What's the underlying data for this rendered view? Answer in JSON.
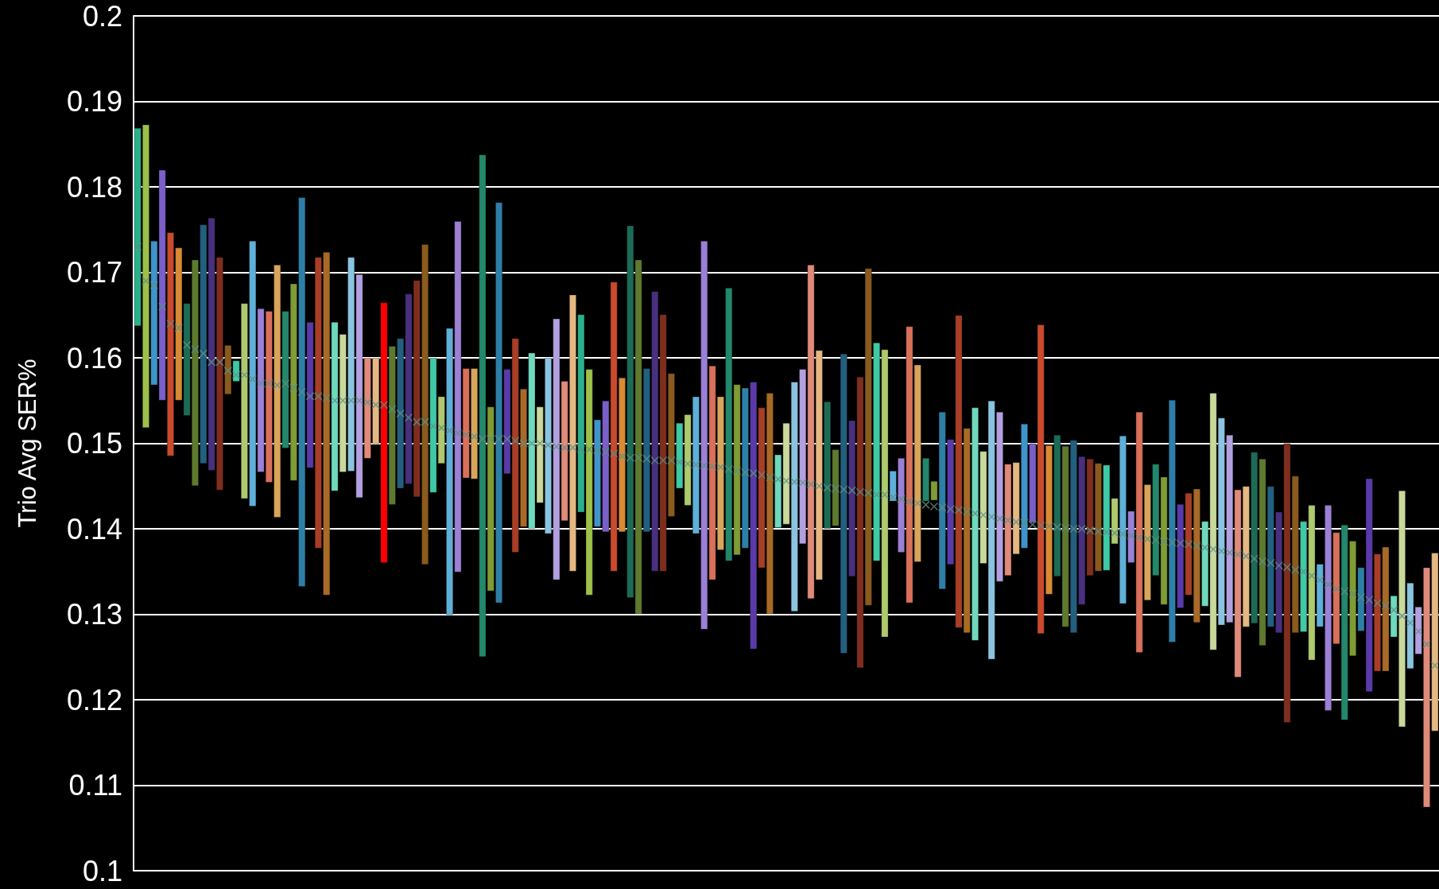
{
  "chart_data": {
    "type": "bar",
    "ylabel": "Trio Avg SER%",
    "categories": [
      null,
      null,
      null,
      null,
      null,
      null,
      null,
      null,
      null,
      null,
      null,
      null,
      null,
      null,
      null,
      null,
      null,
      null,
      null,
      null,
      null,
      null,
      null,
      null,
      null,
      null,
      null,
      null,
      null,
      null,
      null,
      null,
      null,
      null,
      null,
      null,
      null,
      null,
      null,
      null,
      null,
      null,
      null,
      null,
      null,
      null,
      null,
      null,
      null,
      null,
      null,
      null,
      null,
      null,
      null,
      null,
      null,
      null,
      null,
      null,
      null,
      null,
      null,
      null,
      null,
      null,
      null,
      null,
      null,
      null,
      null,
      null,
      null,
      null,
      null,
      null,
      null,
      null,
      null,
      null,
      null,
      null,
      null,
      null,
      null,
      null,
      null,
      null,
      null,
      null,
      null,
      null,
      null,
      null,
      null,
      null,
      null,
      null,
      null,
      null,
      null,
      null,
      null,
      null,
      null,
      null,
      null,
      null,
      null,
      null,
      null,
      null,
      null,
      null,
      null,
      null,
      null,
      null,
      null,
      null,
      null,
      null,
      null,
      null,
      null,
      null,
      null,
      null,
      null,
      null,
      null,
      null,
      null,
      null,
      null,
      null,
      null,
      null,
      null,
      null,
      null,
      null,
      null,
      null,
      null,
      null,
      null,
      null,
      null,
      null,
      null,
      null,
      null,
      null,
      null,
      null,
      null,
      null,
      null
    ],
    "ylim": [
      0.1,
      0.2
    ],
    "yticks": [
      0.1,
      0.11,
      0.12,
      0.13,
      0.14,
      0.15,
      0.16,
      0.17,
      0.18,
      0.19,
      0.2
    ],
    "grid": "y",
    "marker": "cross",
    "series": [
      {
        "type": "bar",
        "base": [
          0.1637,
          0.1518,
          0.1568,
          0.155,
          0.1485,
          0.155,
          0.1532,
          0.145,
          0.1476,
          0.1468,
          0.1445,
          0.1557,
          0.1572,
          0.1435,
          0.1426,
          0.1466,
          0.1454,
          0.1413,
          0.1494,
          0.1456,
          0.1332,
          0.1471,
          0.1377,
          0.1322,
          0.1444,
          0.1466,
          0.1467,
          0.1436,
          0.1482,
          0.1499,
          0.136,
          0.1428,
          0.1447,
          0.1452,
          0.1437,
          0.1358,
          0.1442,
          0.1476,
          0.1299,
          0.1349,
          0.1459,
          0.1458,
          0.125,
          0.1327,
          0.1313,
          0.1464,
          0.1372,
          0.1402,
          0.14,
          0.143,
          0.1394,
          0.134,
          0.1409,
          0.135,
          0.1419,
          0.1322,
          0.1402,
          0.1396,
          0.135,
          0.1396,
          0.1319,
          0.13,
          0.1396,
          0.135,
          0.135,
          0.1414,
          0.1447,
          0.1427,
          0.1394,
          0.1282,
          0.134,
          0.1375,
          0.1362,
          0.1369,
          0.1377,
          0.1259,
          0.1354,
          0.13,
          0.1401,
          0.1405,
          0.1303,
          0.1382,
          0.1318,
          0.134,
          0.14,
          0.1403,
          0.1254,
          0.1344,
          0.1237,
          0.131,
          0.1362,
          0.1273,
          0.1432,
          0.1372,
          0.1313,
          0.1361,
          0.1432,
          0.1433,
          0.1329,
          0.1358,
          0.1284,
          0.1278,
          0.1269,
          0.1359,
          0.1247,
          0.1338,
          0.1345,
          0.137,
          0.1377,
          0.1407,
          0.1277,
          0.1323,
          0.1344,
          0.1285,
          0.1278,
          0.1311,
          0.1345,
          0.135,
          0.1351,
          0.1382,
          0.1312,
          0.136,
          0.1255,
          0.1316,
          0.1345,
          0.1311,
          0.1267,
          0.1307,
          0.1322,
          0.129,
          0.1309,
          0.1258,
          0.1287,
          0.129,
          0.1226,
          0.1285,
          0.1289,
          0.1263,
          0.1285,
          0.1278,
          0.1173,
          0.1278,
          0.1279,
          0.1246,
          0.1285,
          0.1187,
          0.1265,
          0.1176,
          0.1251,
          0.128,
          0.1209,
          0.1233,
          0.1233,
          0.1273,
          0.1168,
          0.1236,
          0.1253,
          0.1074,
          0.1163
        ],
        "values": [
          0.0232,
          0.0355,
          0.0169,
          0.027,
          0.0262,
          0.0179,
          0.0132,
          0.0265,
          0.028,
          0.0296,
          0.0273,
          0.0058,
          0.0025,
          0.0229,
          0.0311,
          0.0192,
          0.0201,
          0.0296,
          0.0161,
          0.0231,
          0.0456,
          0.0171,
          0.0341,
          0.0402,
          0.0198,
          0.0162,
          0.0251,
          0.0262,
          0.0118,
          0.0101,
          0.0305,
          0.0186,
          0.0176,
          0.0223,
          0.0254,
          0.0375,
          0.0158,
          0.0079,
          0.0336,
          0.0411,
          0.0129,
          0.013,
          0.0588,
          0.0216,
          0.0469,
          0.0123,
          0.0251,
          0.0162,
          0.0206,
          0.0113,
          0.0206,
          0.0306,
          0.0164,
          0.0324,
          0.0232,
          0.0265,
          0.0126,
          0.0154,
          0.0339,
          0.0181,
          0.0436,
          0.0415,
          0.0192,
          0.0328,
          0.0301,
          0.0168,
          0.0077,
          0.0107,
          0.0161,
          0.0455,
          0.0251,
          0.018,
          0.032,
          0.02,
          0.0188,
          0.0313,
          0.0188,
          0.0259,
          0.0086,
          0.0119,
          0.0269,
          0.0205,
          0.0391,
          0.0269,
          0.0149,
          0.009,
          0.0351,
          0.0183,
          0.0341,
          0.0395,
          0.0256,
          0.0337,
          0.0036,
          0.0111,
          0.0324,
          0.0231,
          0.0051,
          0.0023,
          0.0208,
          0.0147,
          0.0366,
          0.024,
          0.0273,
          0.0132,
          0.0303,
          0.0199,
          0.0131,
          0.0108,
          0.0146,
          0.0093,
          0.0362,
          0.0175,
          0.0166,
          0.0212,
          0.0226,
          0.0174,
          0.0137,
          0.0127,
          0.0124,
          0.0054,
          0.0197,
          0.0061,
          0.0282,
          0.0136,
          0.0131,
          0.015,
          0.0284,
          0.0122,
          0.012,
          0.0157,
          0.01,
          0.0301,
          0.0243,
          0.022,
          0.022,
          0.0165,
          0.0201,
          0.0219,
          0.0165,
          0.0142,
          0.0327,
          0.0184,
          0.013,
          0.0182,
          0.0074,
          0.0241,
          0.0131,
          0.0229,
          0.0135,
          0.0075,
          0.025,
          0.0138,
          0.0146,
          0.0049,
          0.0277,
          0.0101,
          0.0056,
          0.0281,
          0.0209
        ],
        "colors": [
          "#2ab08a",
          "#9dc04a",
          "#3f94c9",
          "#7b5fc9",
          "#c94a2c",
          "#d98a35",
          "#1d6b57",
          "#5e7a2e",
          "#235f7f",
          "#48307f",
          "#7f2e1e",
          "#8a5a1e",
          "#3fc9a6",
          "#afc96e",
          "#5fb0d9",
          "#9b80d6",
          "#d9705a",
          "#d9a55a",
          "#23876b",
          "#7f9c35",
          "#2e7fa8",
          "#5a3aa8",
          "#a83e26",
          "#a86a26",
          "#6fd9bd",
          "#c9d99b",
          "#8ac4e0",
          "#b3a0e0",
          "#e08a7a",
          "#e5b882",
          "#ff0000",
          "#5e7a2e",
          "#235f7f",
          "#48307f",
          "#7f2e1e",
          "#8a5a1e",
          "#3fc9a6",
          "#afc96e",
          "#5fb0d9",
          "#9b80d6",
          "#d9705a",
          "#d9a55a",
          "#23876b",
          "#7f9c35",
          "#2e7fa8",
          "#5a3aa8",
          "#a83e26",
          "#a86a26",
          "#6fd9bd",
          "#c9d99b",
          "#8ac4e0",
          "#b3a0e0",
          "#e08a7a",
          "#e5b882",
          "#2ab08a",
          "#9dc04a",
          "#3f94c9",
          "#7b5fc9",
          "#c94a2c",
          "#d98a35",
          "#1d6b57",
          "#5e7a2e",
          "#235f7f",
          "#48307f",
          "#7f2e1e",
          "#8a5a1e",
          "#3fc9a6",
          "#afc96e",
          "#5fb0d9",
          "#9b80d6",
          "#d9705a",
          "#d9a55a",
          "#23876b",
          "#7f9c35",
          "#2e7fa8",
          "#5a3aa8",
          "#a83e26",
          "#a86a26",
          "#6fd9bd",
          "#c9d99b",
          "#8ac4e0",
          "#b3a0e0",
          "#e08a7a",
          "#e5b882",
          "#1d6b57",
          "#5e7a2e",
          "#235f7f",
          "#48307f",
          "#7f2e1e",
          "#8a5a1e",
          "#3fc9a6",
          "#afc96e",
          "#5fb0d9",
          "#9b80d6",
          "#d9705a",
          "#d9a55a",
          "#23876b",
          "#7f9c35",
          "#2e7fa8",
          "#5a3aa8",
          "#a83e26",
          "#a86a26",
          "#6fd9bd",
          "#c9d99b",
          "#8ac4e0",
          "#b3a0e0",
          "#e08a7a",
          "#e5b882",
          "#3f94c9",
          "#7b5fc9",
          "#c94a2c",
          "#d98a35",
          "#1d6b57",
          "#5e7a2e",
          "#235f7f",
          "#48307f",
          "#7f2e1e",
          "#8a5a1e",
          "#3fc9a6",
          "#afc96e",
          "#5fb0d9",
          "#9b80d6",
          "#d9705a",
          "#d9a55a",
          "#23876b",
          "#7f9c35",
          "#2e7fa8",
          "#5a3aa8",
          "#a83e26",
          "#a86a26",
          "#6fd9bd",
          "#c9d99b",
          "#8ac4e0",
          "#b3a0e0",
          "#e08a7a",
          "#e5b882",
          "#1d6b57",
          "#5e7a2e",
          "#235f7f",
          "#48307f",
          "#7f2e1e",
          "#8a5a1e",
          "#3fc9a6",
          "#afc96e",
          "#5fb0d9",
          "#9b80d6",
          "#d9705a",
          "#23876b",
          "#7f9c35",
          "#2e7fa8",
          "#5a3aa8",
          "#a83e26",
          "#a86a26",
          "#6fd9bd",
          "#c9d99b",
          "#8ac4e0",
          "#b3a0e0",
          "#e08a7a",
          "#e5b882"
        ]
      },
      {
        "type": "scatter",
        "color": "#5f8f86",
        "values": [
          0.173,
          0.169,
          0.1685,
          0.166,
          0.164,
          0.1635,
          0.1615,
          0.161,
          0.1605,
          0.1595,
          0.1595,
          0.1585,
          0.158,
          0.158,
          0.1575,
          0.157,
          0.157,
          0.1568,
          0.157,
          0.1565,
          0.156,
          0.1555,
          0.1555,
          0.1553,
          0.155,
          0.155,
          0.155,
          0.155,
          0.1548,
          0.1545,
          0.1545,
          0.154,
          0.1535,
          0.153,
          0.1525,
          0.1525,
          0.152,
          0.1518,
          0.1515,
          0.1512,
          0.151,
          0.1508,
          0.1505,
          0.1505,
          0.1505,
          0.1505,
          0.1503,
          0.15,
          0.15,
          0.15,
          0.1498,
          0.1496,
          0.1495,
          0.1495,
          0.1493,
          0.1493,
          0.1492,
          0.149,
          0.1488,
          0.1485,
          0.1483,
          0.1483,
          0.1482,
          0.148,
          0.148,
          0.148,
          0.1478,
          0.1476,
          0.1475,
          0.1474,
          0.1473,
          0.1472,
          0.147,
          0.1468,
          0.1466,
          0.1465,
          0.1463,
          0.146,
          0.1458,
          0.1456,
          0.1455,
          0.1454,
          0.1452,
          0.145,
          0.1448,
          0.1447,
          0.1446,
          0.1445,
          0.1443,
          0.1442,
          0.144,
          0.144,
          0.1437,
          0.1435,
          0.1432,
          0.143,
          0.1428,
          0.1426,
          0.1425,
          0.1423,
          0.1422,
          0.142,
          0.1418,
          0.1416,
          0.1414,
          0.1412,
          0.141,
          0.1408,
          0.1407,
          0.1405,
          0.1404,
          0.1403,
          0.1402,
          0.1401,
          0.14,
          0.14,
          0.1398,
          0.1397,
          0.1396,
          0.1395,
          0.1394,
          0.1392,
          0.139,
          0.1388,
          0.1387,
          0.1385,
          0.1384,
          0.1383,
          0.1382,
          0.138,
          0.1378,
          0.1376,
          0.1374,
          0.1372,
          0.137,
          0.1368,
          0.1365,
          0.1362,
          0.136,
          0.1357,
          0.1355,
          0.1352,
          0.135,
          0.1345,
          0.134,
          0.1335,
          0.133,
          0.1327,
          0.1324,
          0.132,
          0.1317,
          0.1313,
          0.131,
          0.1305,
          0.1298,
          0.129,
          0.128,
          0.1265,
          0.124
        ]
      }
    ]
  }
}
